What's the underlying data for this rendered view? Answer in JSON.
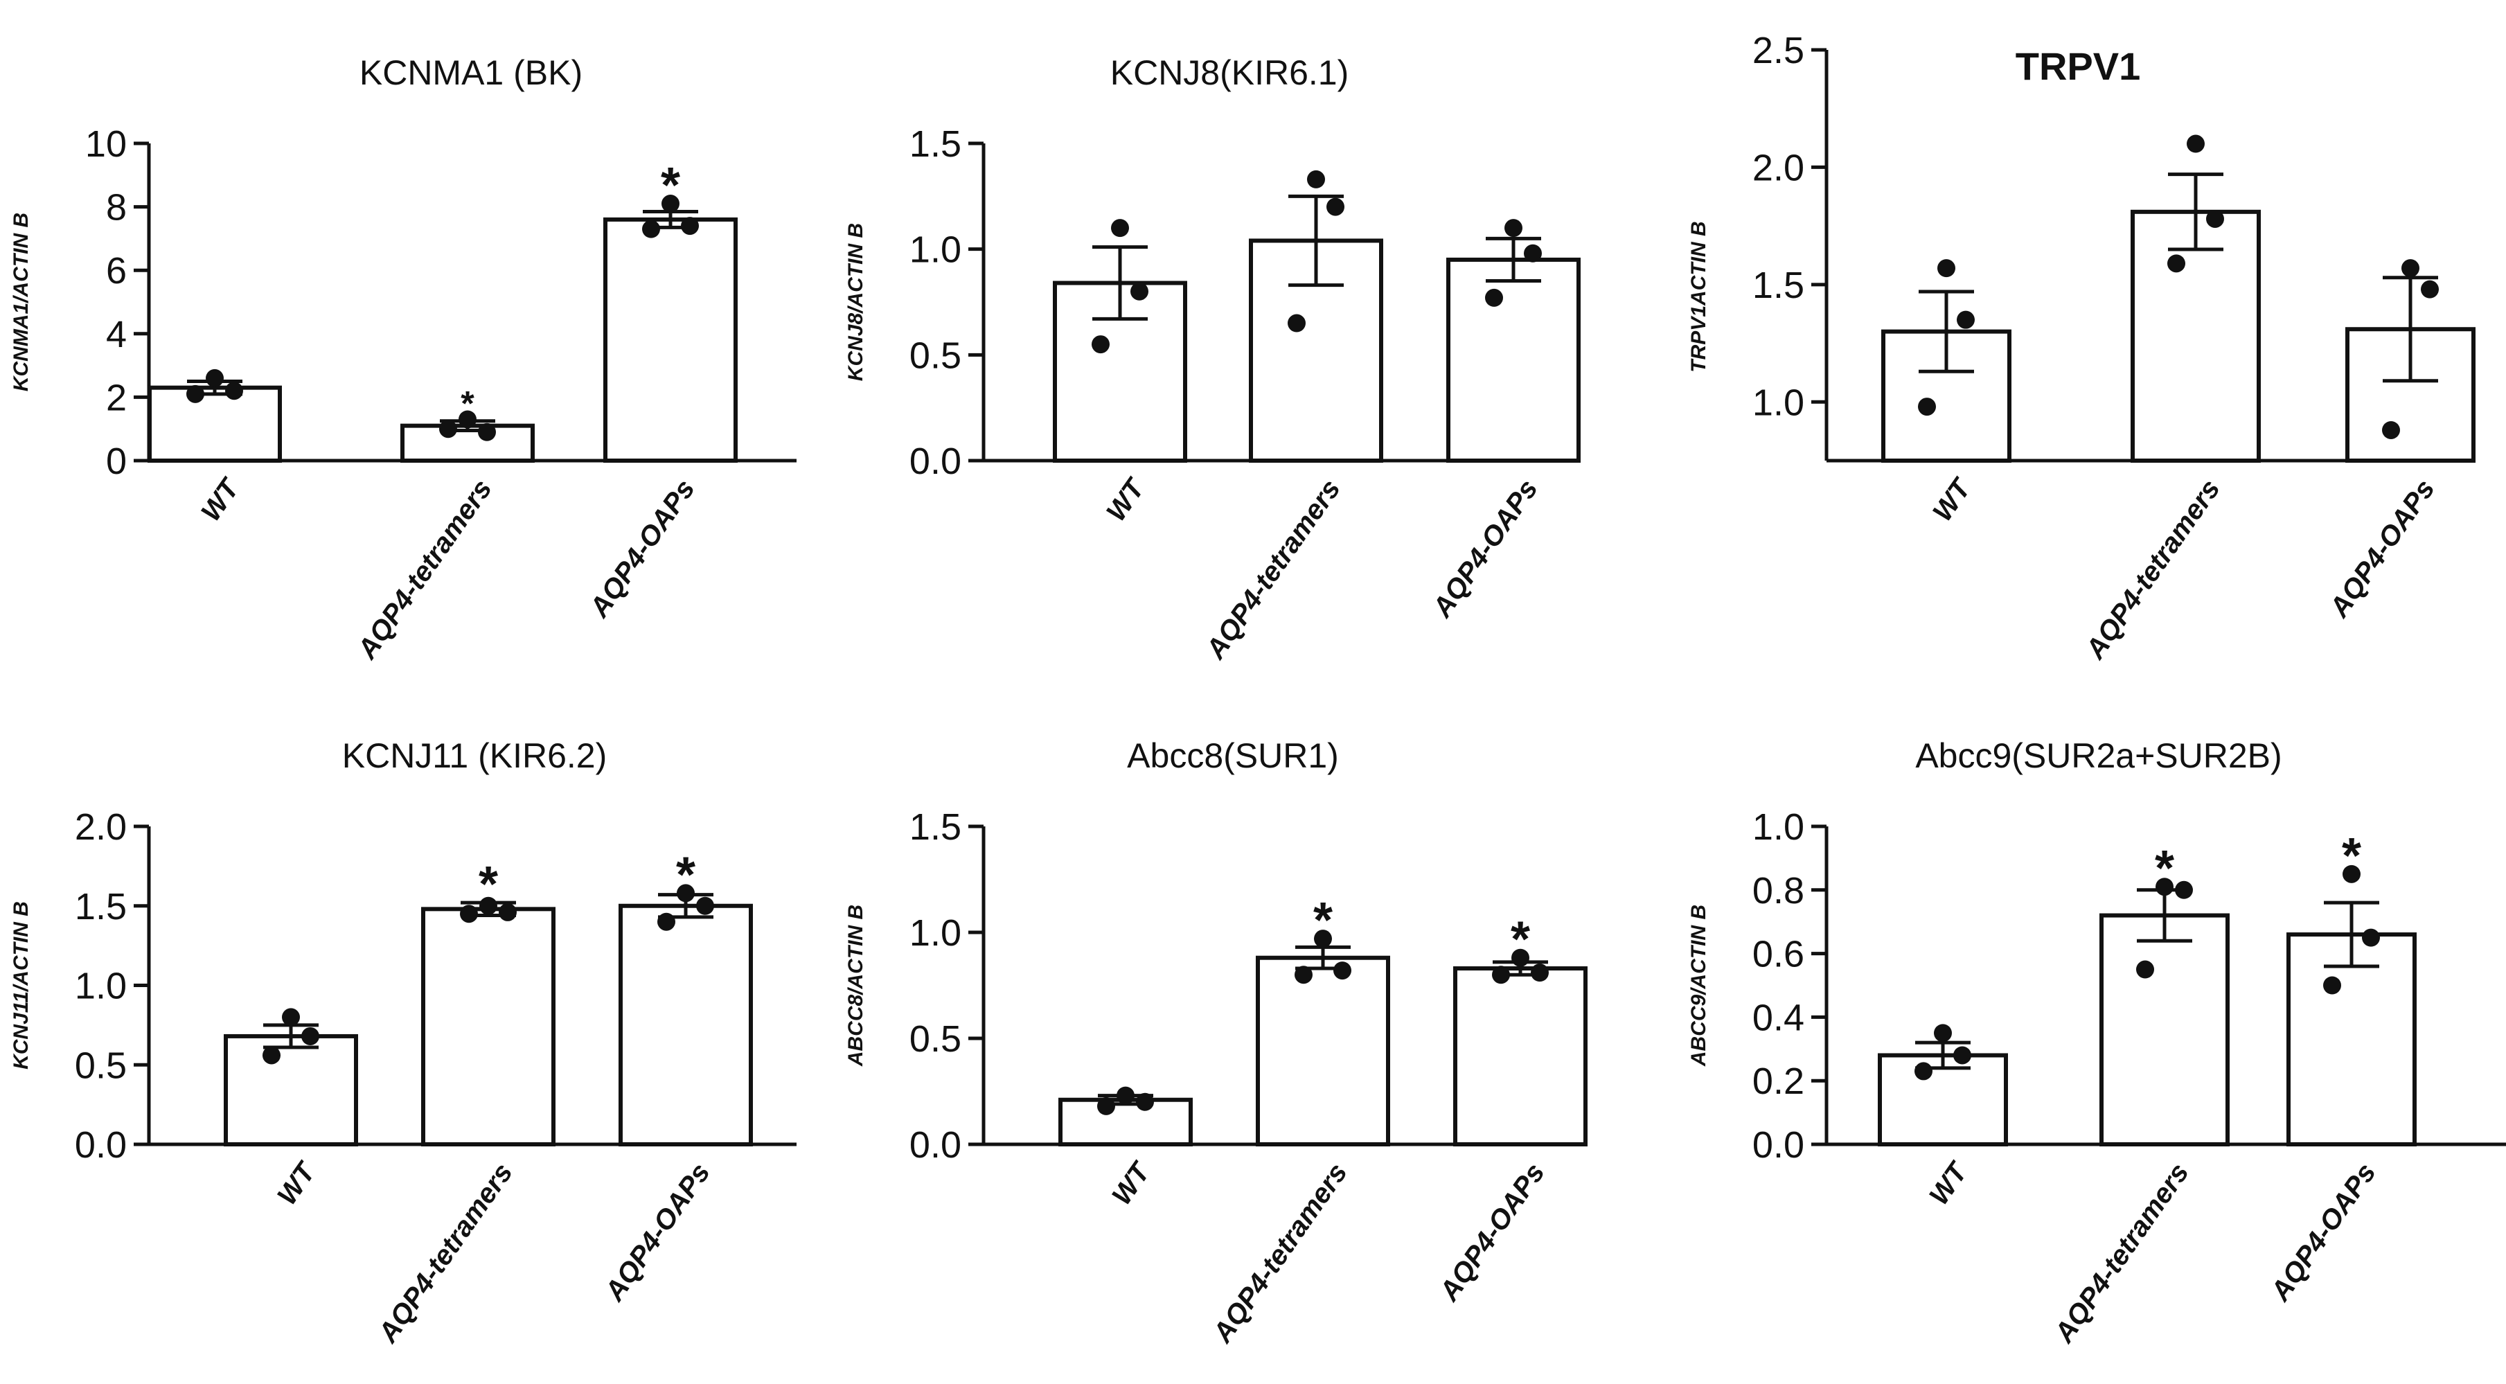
{
  "chart_data": [
    {
      "type": "bar",
      "title": "KCNMA1 (BK)",
      "ylabel": "KCNMA1/ACTIN B",
      "categories": [
        "WT",
        "AQP4-tetramers",
        "AQP4-OAPs"
      ],
      "ylim": [
        0,
        10
      ],
      "yticks": [
        "0",
        "2",
        "4",
        "6",
        "8",
        "10"
      ],
      "values": [
        2.3,
        1.1,
        7.6
      ],
      "sem": [
        0.2,
        0.15,
        0.25
      ],
      "points": [
        [
          2.6,
          2.2,
          2.1
        ],
        [
          1.3,
          0.9,
          1.0
        ],
        [
          8.1,
          7.4,
          7.3
        ]
      ],
      "significance": [
        "",
        "*",
        "*"
      ]
    },
    {
      "type": "bar",
      "title": "KCNJ8(KIR6.1)",
      "ylabel": "KCNJ8/ACTIN B",
      "categories": [
        "WT",
        "AQP4-tetramers",
        "AQP4-OAPs"
      ],
      "ylim": [
        0,
        1.5
      ],
      "yticks": [
        "0.0",
        "0.5",
        "1.0",
        "1.5"
      ],
      "values": [
        0.84,
        1.04,
        0.95
      ],
      "sem": [
        0.17,
        0.21,
        0.1
      ],
      "points": [
        [
          1.1,
          0.8,
          0.55
        ],
        [
          1.33,
          1.2,
          0.65
        ],
        [
          1.1,
          0.98,
          0.77
        ]
      ],
      "significance": [
        "",
        "",
        ""
      ]
    },
    {
      "type": "bar",
      "title": "TRPV1",
      "ylabel": "TRPV1ACTIN B",
      "categories": [
        "WT",
        "AQP4-tetramers",
        "AQP4-OAPs"
      ],
      "ylim": [
        0.75,
        2.5
      ],
      "yticks": [
        "1.0",
        "1.5",
        "2.0",
        "2.5"
      ],
      "values": [
        1.3,
        1.81,
        1.31
      ],
      "sem": [
        0.17,
        0.16,
        0.22
      ],
      "points": [
        [
          1.57,
          1.35,
          0.98
        ],
        [
          2.1,
          1.78,
          1.59
        ],
        [
          1.57,
          1.48,
          0.88
        ]
      ],
      "significance": [
        "",
        "",
        ""
      ]
    },
    {
      "type": "bar",
      "title": "KCNJ11 (KIR6.2)",
      "ylabel": "KCNJ11/ACTIN B",
      "categories": [
        "WT",
        "AQP4-tetramers",
        "AQP4-OAPs"
      ],
      "ylim": [
        0,
        2
      ],
      "yticks": [
        "0.0",
        "0.5",
        "1.0",
        "1.5",
        "2.0"
      ],
      "values": [
        0.68,
        1.48,
        1.5
      ],
      "sem": [
        0.07,
        0.04,
        0.07
      ],
      "points": [
        [
          0.8,
          0.68,
          0.56
        ],
        [
          1.5,
          1.46,
          1.45
        ],
        [
          1.58,
          1.5,
          1.4
        ]
      ],
      "significance": [
        "",
        "*",
        "*"
      ]
    },
    {
      "type": "bar",
      "title": "Abcc8(SUR1)",
      "ylabel": "ABCC8/ACTIN B",
      "categories": [
        "WT",
        "AQP4-tetramers",
        "AQP4-OAPs"
      ],
      "ylim": [
        0,
        1.5
      ],
      "yticks": [
        "0.0",
        "0.5",
        "1.0",
        "1.5"
      ],
      "values": [
        0.21,
        0.88,
        0.83
      ],
      "sem": [
        0.02,
        0.05,
        0.03
      ],
      "points": [
        [
          0.23,
          0.2,
          0.18
        ],
        [
          0.97,
          0.82,
          0.8
        ],
        [
          0.88,
          0.81,
          0.8
        ]
      ],
      "significance": [
        "",
        "*",
        "*"
      ]
    },
    {
      "type": "bar",
      "title": "Abcc9(SUR2a+SUR2B)",
      "ylabel": "ABCC9/ACTIN B",
      "categories": [
        "WT",
        "AQP4-tetramers",
        "AQP4-OAPs"
      ],
      "ylim": [
        0,
        1
      ],
      "yticks": [
        "0.0",
        "0.2",
        "0.4",
        "0.6",
        "0.8",
        "1.0"
      ],
      "values": [
        0.28,
        0.72,
        0.66
      ],
      "sem": [
        0.04,
        0.08,
        0.1
      ],
      "points": [
        [
          0.35,
          0.28,
          0.23
        ],
        [
          0.81,
          0.8,
          0.55
        ],
        [
          0.85,
          0.65,
          0.5
        ]
      ],
      "significance": [
        "",
        "*",
        "*"
      ]
    }
  ]
}
